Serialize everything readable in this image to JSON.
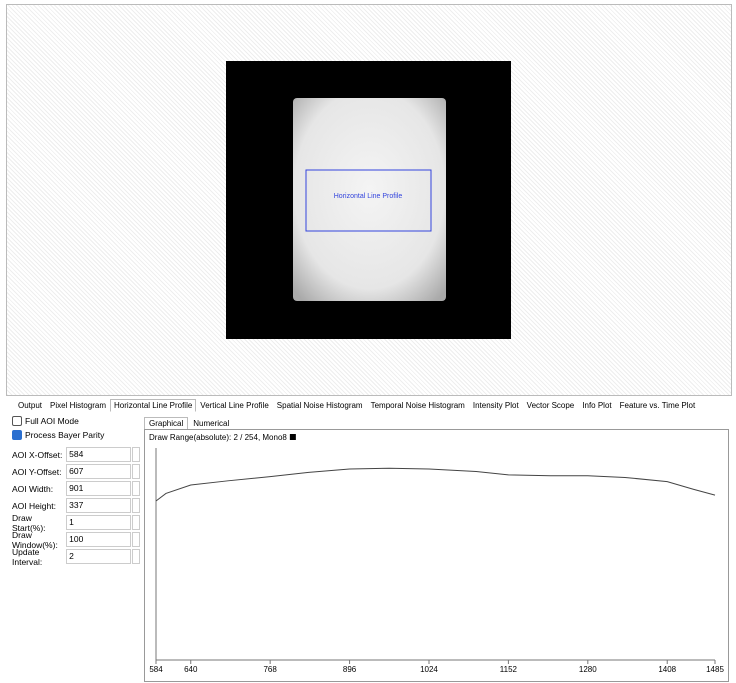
{
  "viewer": {
    "overlay_label": "Horizontal Line Profile"
  },
  "tabs": [
    "Output",
    "Pixel Histogram",
    "Horizontal Line Profile",
    "Vertical Line Profile",
    "Spatial Noise Histogram",
    "Temporal Noise Histogram",
    "Intensity Plot",
    "Vector Scope",
    "Info Plot",
    "Feature vs. Time Plot"
  ],
  "selected_tab": 2,
  "options": [
    {
      "label": "Full AOI Mode",
      "checked": false
    },
    {
      "label": "Process Bayer Parity",
      "checked": true
    }
  ],
  "fields": [
    {
      "label": "AOI X-Offset:",
      "value": "584"
    },
    {
      "label": "AOI Y-Offset:",
      "value": "607"
    },
    {
      "label": "AOI Width:",
      "value": "901"
    },
    {
      "label": "AOI Height:",
      "value": "337"
    },
    {
      "label": "Draw Start(%):",
      "value": "1"
    },
    {
      "label": "Draw Window(%):",
      "value": "100"
    },
    {
      "label": "Update Interval:",
      "value": "2"
    }
  ],
  "subtabs": [
    "Graphical",
    "Numerical"
  ],
  "chart_data": {
    "type": "line",
    "title": "Draw Range(absolute): 2 / 254, Mono8",
    "x": [
      584,
      600,
      640,
      700,
      768,
      830,
      896,
      960,
      1024,
      1100,
      1152,
      1220,
      1280,
      1340,
      1408,
      1450,
      1485
    ],
    "values": [
      191,
      200,
      210,
      215,
      220,
      225,
      229,
      230,
      229,
      226,
      222,
      221,
      221,
      219,
      214,
      205,
      198
    ],
    "xlim": [
      584,
      1485
    ],
    "xticks": [
      584,
      640,
      768,
      896,
      1024,
      1152,
      1280,
      1408,
      1485
    ],
    "ylim": [
      2,
      254
    ],
    "color": "#444444"
  }
}
